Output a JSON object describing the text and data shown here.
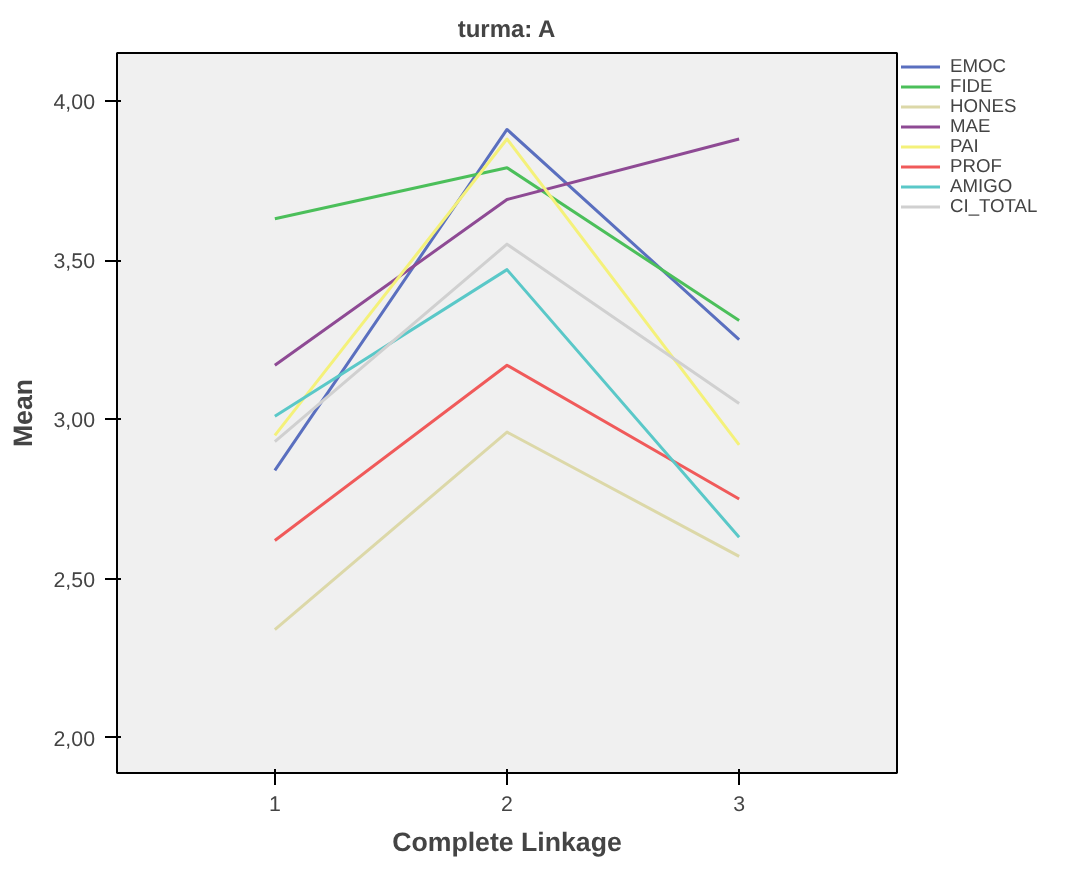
{
  "chart_data": {
    "type": "line",
    "title": "turma: A",
    "xlabel": "Complete Linkage",
    "ylabel": "Mean",
    "x": [
      1,
      2,
      3
    ],
    "xlim": [
      0.32,
      3.68
    ],
    "xticks": [
      1,
      2,
      3
    ],
    "ylim": [
      1.89,
      4.15
    ],
    "yticks": [
      {
        "value": 2,
        "label": "2,00"
      },
      {
        "value": 2.5,
        "label": "2,50"
      },
      {
        "value": 3,
        "label": "3,00"
      },
      {
        "value": 3.5,
        "label": "3,50"
      },
      {
        "value": 4,
        "label": "4,00"
      }
    ],
    "grid": false,
    "legend": "right",
    "marker": "none",
    "line_style": "solid",
    "series": [
      {
        "name": "EMOC",
        "color": "#5a6fbf",
        "values": [
          2.84,
          3.91,
          3.25
        ]
      },
      {
        "name": "FIDE",
        "color": "#4bbf5a",
        "values": [
          3.63,
          3.79,
          3.31
        ]
      },
      {
        "name": "HONES",
        "color": "#dcd8a8",
        "values": [
          2.34,
          2.96,
          2.57
        ]
      },
      {
        "name": "MAE",
        "color": "#8e4a94",
        "values": [
          3.17,
          3.69,
          3.88
        ]
      },
      {
        "name": "PAI",
        "color": "#f4f17a",
        "values": [
          2.95,
          3.88,
          2.92
        ]
      },
      {
        "name": "PROF",
        "color": "#f05a5a",
        "values": [
          2.62,
          3.17,
          2.75
        ]
      },
      {
        "name": "AMIGO",
        "color": "#5ac8c8",
        "values": [
          3.01,
          3.47,
          2.63
        ]
      },
      {
        "name": "CI_TOTAL",
        "color": "#d0d0d0",
        "values": [
          2.93,
          3.55,
          3.05
        ]
      }
    ]
  }
}
